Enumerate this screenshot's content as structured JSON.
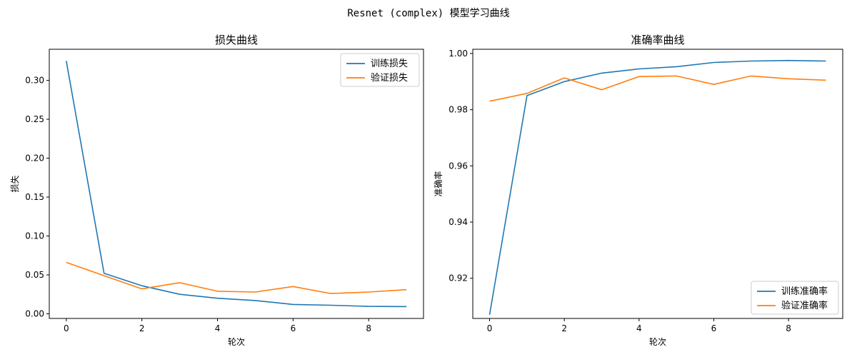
{
  "figure": {
    "suptitle": "Resnet (complex) 模型学习曲线"
  },
  "colors": {
    "train": "#1f77b4",
    "val": "#ff7f0e",
    "axis": "#000000"
  },
  "chart_data": [
    {
      "type": "line",
      "title": "损失曲线",
      "xlabel": "轮次",
      "ylabel": "损失",
      "xlim": [
        -0.45,
        9.45
      ],
      "ylim": [
        -0.006,
        0.34
      ],
      "xticks": [
        0,
        2,
        4,
        6,
        8
      ],
      "yticks": [
        0.0,
        0.05,
        0.1,
        0.15,
        0.2,
        0.25,
        0.3
      ],
      "ytick_labels": [
        "0.00",
        "0.05",
        "0.10",
        "0.15",
        "0.20",
        "0.25",
        "0.30"
      ],
      "legend_position": "upper right",
      "x": [
        0,
        1,
        2,
        3,
        4,
        5,
        6,
        7,
        8,
        9
      ],
      "series": [
        {
          "name": "训练损失",
          "color": "#1f77b4",
          "values": [
            0.325,
            0.052,
            0.036,
            0.025,
            0.02,
            0.017,
            0.012,
            0.011,
            0.0095,
            0.0092
          ]
        },
        {
          "name": "验证损失",
          "color": "#ff7f0e",
          "values": [
            0.066,
            0.049,
            0.032,
            0.04,
            0.029,
            0.028,
            0.035,
            0.026,
            0.028,
            0.031
          ]
        }
      ]
    },
    {
      "type": "line",
      "title": "准确率曲线",
      "xlabel": "轮次",
      "ylabel": "准确率",
      "xlim": [
        -0.45,
        9.45
      ],
      "ylim": [
        0.9057,
        1.0015
      ],
      "xticks": [
        0,
        2,
        4,
        6,
        8
      ],
      "yticks": [
        0.92,
        0.94,
        0.96,
        0.98,
        1.0
      ],
      "ytick_labels": [
        "0.92",
        "0.94",
        "0.96",
        "0.98",
        "1.00"
      ],
      "legend_position": "lower right",
      "x": [
        0,
        1,
        2,
        3,
        4,
        5,
        6,
        7,
        8,
        9
      ],
      "series": [
        {
          "name": "训练准确率",
          "color": "#1f77b4",
          "values": [
            0.907,
            0.985,
            0.99,
            0.993,
            0.9945,
            0.9953,
            0.9968,
            0.9973,
            0.9975,
            0.9973
          ]
        },
        {
          "name": "验证准确率",
          "color": "#ff7f0e",
          "values": [
            0.983,
            0.9858,
            0.9913,
            0.9871,
            0.9918,
            0.992,
            0.989,
            0.992,
            0.991,
            0.9905
          ]
        }
      ]
    }
  ]
}
